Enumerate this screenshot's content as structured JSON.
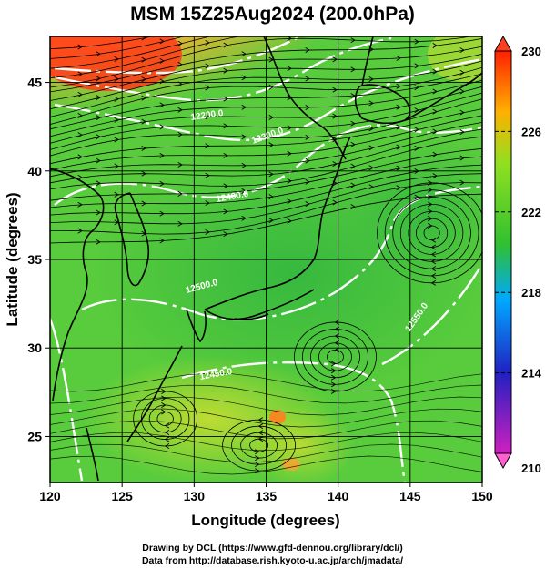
{
  "title": "MSM 15Z25Aug2024 (200.0hPa)",
  "map": {
    "x_axis": {
      "label": "Longitude (degrees)",
      "ticks": [
        "120",
        "125",
        "130",
        "135",
        "140",
        "145",
        "150"
      ],
      "range": [
        120,
        150
      ]
    },
    "y_axis": {
      "label": "Latitude  (degrees)",
      "ticks": [
        "25",
        "30",
        "35",
        "40",
        "45"
      ],
      "range": [
        22.4,
        47.6
      ]
    },
    "colorbar": {
      "ticks": [
        "230",
        "226",
        "222",
        "218",
        "214",
        "210"
      ],
      "range": [
        210,
        230
      ],
      "colors": [
        "#d020c0",
        "#2020c0",
        "#00a8ff",
        "#30c030",
        "#90e020",
        "#ffb000",
        "#ff2000"
      ]
    },
    "contour_labels": [
      "12200.0",
      "12300.0",
      "12400.0",
      "12500.0",
      "12450.0",
      "12550.0"
    ],
    "field_colors": {
      "warm_center": "#ff4020",
      "orange": "#ff9020",
      "yellow_green": "#c8e030",
      "green": "#50d040",
      "deep_green": "#30b838",
      "contour": "#ffffff",
      "streamline": "#000000"
    }
  },
  "footer": {
    "line1": "Drawing by DCL (https://www.gfd-dennou.org/library/dcl/)",
    "line2": "Data from http://database.rish.kyoto-u.ac.jp/arch/jmadata/"
  }
}
